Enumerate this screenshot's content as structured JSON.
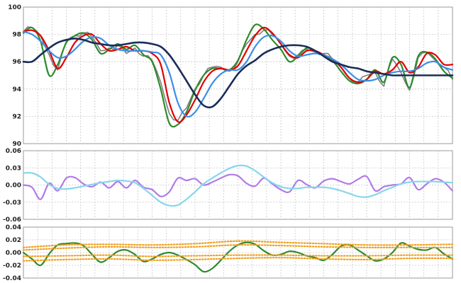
{
  "chart_data": [
    {
      "type": "line",
      "panel": "price",
      "ylim": [
        90,
        100
      ],
      "y_ticks": [
        "90",
        "92",
        "94",
        "96",
        "98",
        "100"
      ],
      "x_range": [
        0,
        100
      ],
      "x_gridlines": 30,
      "grid": true,
      "colors": {
        "price": "#7f7f7f",
        "fast": "#2e8b2e",
        "medium": "#e00000",
        "slow": "#3b8ee8",
        "slowest": "#1a2d57"
      },
      "series": [
        {
          "key": "price",
          "x": [
            0,
            2,
            4,
            6,
            8,
            10,
            12,
            14,
            16,
            18,
            20,
            22,
            24,
            26,
            28,
            30,
            32,
            34,
            36,
            38,
            40,
            42,
            44,
            46,
            48,
            50,
            52,
            54,
            56,
            58,
            60,
            62,
            64,
            66,
            68,
            70,
            72,
            74,
            76,
            78,
            80,
            82,
            84,
            86,
            88,
            90,
            92,
            94,
            96,
            98,
            100
          ],
          "values": [
            98.2,
            98.5,
            97.9,
            96.5,
            95.4,
            97.5,
            97.9,
            98.1,
            97.8,
            96.8,
            97.0,
            97.2,
            96.6,
            97.0,
            96.4,
            96.1,
            94.5,
            92.2,
            91.7,
            92.6,
            94.0,
            95.0,
            95.6,
            95.6,
            95.3,
            96.0,
            97.3,
            98.0,
            98.3,
            98.0,
            97.3,
            96.4,
            96.5,
            96.9,
            96.7,
            96.6,
            96.2,
            95.6,
            94.8,
            94.5,
            95.0,
            95.2,
            94.2,
            96.2,
            95.2,
            93.9,
            96.3,
            96.7,
            96.1,
            95.6,
            94.7
          ]
        },
        {
          "key": "fast",
          "x": [
            0,
            2,
            4,
            6,
            8,
            10,
            12,
            14,
            16,
            18,
            20,
            22,
            24,
            26,
            28,
            30,
            32,
            34,
            36,
            38,
            40,
            42,
            44,
            46,
            48,
            50,
            52,
            54,
            56,
            58,
            60,
            62,
            64,
            66,
            68,
            70,
            72,
            74,
            76,
            78,
            80,
            82,
            84,
            86,
            88,
            90,
            92,
            94,
            96,
            98,
            100
          ],
          "values": [
            98.1,
            98.5,
            97.5,
            95.0,
            95.8,
            97.4,
            97.9,
            98.1,
            97.6,
            96.6,
            96.9,
            97.3,
            96.9,
            97.2,
            96.5,
            96.0,
            94.0,
            91.5,
            91.4,
            92.3,
            93.9,
            95.0,
            95.5,
            95.5,
            95.4,
            96.1,
            97.6,
            98.7,
            98.4,
            97.6,
            96.9,
            96.0,
            96.4,
            97.0,
            96.8,
            96.5,
            96.1,
            95.3,
            94.6,
            94.4,
            94.7,
            95.4,
            94.5,
            96.3,
            95.8,
            94.1,
            96.4,
            96.7,
            96.2,
            95.3,
            94.8
          ]
        },
        {
          "key": "medium",
          "x": [
            0,
            2,
            4,
            6,
            8,
            10,
            12,
            14,
            16,
            18,
            20,
            22,
            24,
            26,
            28,
            30,
            32,
            34,
            36,
            38,
            40,
            42,
            44,
            46,
            48,
            50,
            52,
            54,
            56,
            58,
            60,
            62,
            64,
            66,
            68,
            70,
            72,
            74,
            76,
            78,
            80,
            82,
            84,
            86,
            88,
            90,
            92,
            94,
            96,
            98,
            100
          ],
          "values": [
            98.2,
            98.3,
            97.9,
            96.8,
            95.5,
            96.3,
            97.4,
            97.9,
            98.0,
            97.3,
            96.8,
            96.9,
            97.1,
            96.8,
            96.8,
            96.6,
            95.8,
            93.0,
            91.6,
            92.1,
            93.2,
            94.5,
            95.3,
            95.5,
            95.4,
            95.7,
            96.8,
            97.9,
            98.5,
            98.1,
            97.3,
            96.5,
            96.3,
            96.8,
            96.8,
            96.5,
            96.2,
            95.6,
            94.8,
            94.5,
            94.7,
            95.3,
            95.1,
            95.4,
            96.0,
            95.2,
            95.6,
            96.6,
            96.5,
            95.8,
            95.8
          ]
        },
        {
          "key": "slow",
          "x": [
            0,
            2,
            4,
            6,
            8,
            10,
            12,
            14,
            16,
            18,
            20,
            22,
            24,
            26,
            28,
            30,
            32,
            34,
            36,
            38,
            40,
            42,
            44,
            46,
            48,
            50,
            52,
            54,
            56,
            58,
            60,
            62,
            64,
            66,
            68,
            70,
            72,
            74,
            76,
            78,
            80,
            82,
            84,
            86,
            88,
            90,
            92,
            94,
            96,
            98,
            100
          ],
          "values": [
            98.2,
            98.0,
            97.5,
            96.8,
            96.3,
            96.4,
            96.9,
            97.5,
            97.8,
            97.7,
            97.2,
            96.9,
            96.8,
            96.8,
            96.8,
            96.7,
            96.5,
            95.2,
            93.0,
            92.0,
            92.3,
            93.3,
            94.4,
            95.1,
            95.4,
            95.4,
            96.0,
            97.1,
            97.8,
            97.9,
            97.5,
            96.8,
            96.4,
            96.5,
            96.6,
            96.5,
            96.2,
            95.8,
            95.2,
            94.7,
            94.6,
            94.7,
            95.0,
            95.2,
            95.3,
            95.3,
            95.5,
            95.9,
            96.0,
            95.6,
            95.4
          ]
        },
        {
          "key": "slowest",
          "x": [
            0,
            2,
            4,
            6,
            8,
            10,
            12,
            14,
            16,
            18,
            20,
            22,
            24,
            26,
            28,
            30,
            32,
            34,
            36,
            38,
            40,
            42,
            44,
            46,
            48,
            50,
            52,
            54,
            56,
            58,
            60,
            62,
            64,
            66,
            68,
            70,
            72,
            74,
            76,
            78,
            80,
            82,
            84,
            86,
            88,
            90,
            92,
            94,
            96,
            98,
            100
          ],
          "values": [
            96.0,
            96.0,
            96.5,
            97.0,
            97.4,
            97.6,
            97.7,
            97.6,
            97.4,
            97.3,
            97.2,
            97.2,
            97.3,
            97.4,
            97.4,
            97.3,
            97.1,
            96.5,
            95.6,
            94.6,
            93.6,
            92.8,
            92.7,
            93.3,
            94.2,
            95.1,
            95.7,
            96.1,
            96.6,
            96.9,
            97.1,
            97.2,
            97.2,
            97.1,
            96.8,
            96.4,
            96.0,
            95.8,
            95.6,
            95.5,
            95.3,
            95.2,
            95.1,
            95.0,
            95.0,
            95.0,
            95.0,
            95.0,
            95.0,
            95.0,
            95.0
          ]
        }
      ]
    },
    {
      "type": "line",
      "panel": "oscillator",
      "ylim": [
        -0.06,
        0.06
      ],
      "y_ticks": [
        "-0.06",
        "-0.03",
        "0.00",
        "0.03",
        "0.06"
      ],
      "x_range": [
        0,
        100
      ],
      "grid": true,
      "colors": {
        "osc": "#b07ce6",
        "smooth": "#88d6ec"
      },
      "series": [
        {
          "key": "osc",
          "x": [
            0,
            2,
            4,
            6,
            8,
            10,
            12,
            14,
            16,
            18,
            20,
            22,
            24,
            26,
            28,
            30,
            32,
            34,
            36,
            38,
            40,
            42,
            44,
            46,
            48,
            50,
            52,
            54,
            56,
            58,
            60,
            62,
            64,
            66,
            68,
            70,
            72,
            74,
            76,
            78,
            80,
            82,
            84,
            86,
            88,
            90,
            92,
            94,
            96,
            98,
            100
          ],
          "values": [
            0.0,
            -0.004,
            -0.025,
            0.003,
            -0.01,
            0.012,
            0.013,
            0.002,
            -0.003,
            0.005,
            -0.005,
            0.006,
            -0.005,
            0.008,
            -0.004,
            -0.008,
            -0.02,
            -0.012,
            0.012,
            0.008,
            0.011,
            0.0,
            0.005,
            0.012,
            0.018,
            0.016,
            0.003,
            -0.002,
            0.012,
            0.002,
            -0.008,
            -0.012,
            0.008,
            0.001,
            -0.005,
            0.007,
            0.011,
            0.006,
            0.002,
            0.01,
            0.015,
            -0.01,
            -0.003,
            0.0,
            0.002,
            0.013,
            -0.008,
            0.002,
            0.011,
            0.005,
            -0.01
          ]
        },
        {
          "key": "smooth",
          "x": [
            0,
            2,
            4,
            6,
            8,
            10,
            12,
            14,
            16,
            18,
            20,
            22,
            24,
            26,
            28,
            30,
            32,
            34,
            36,
            38,
            40,
            42,
            44,
            46,
            48,
            50,
            52,
            54,
            56,
            58,
            60,
            62,
            64,
            66,
            68,
            70,
            72,
            74,
            76,
            78,
            80,
            82,
            84,
            86,
            88,
            90,
            92,
            94,
            96,
            98,
            100
          ],
          "values": [
            0.021,
            0.021,
            0.014,
            0.001,
            -0.006,
            -0.007,
            -0.005,
            -0.002,
            0.001,
            0.004,
            0.006,
            0.008,
            0.007,
            0.004,
            -0.006,
            -0.018,
            -0.03,
            -0.036,
            -0.035,
            -0.025,
            -0.012,
            0.002,
            0.012,
            0.021,
            0.029,
            0.034,
            0.033,
            0.025,
            0.014,
            0.004,
            -0.003,
            -0.006,
            -0.006,
            -0.004,
            -0.004,
            -0.004,
            -0.006,
            -0.01,
            -0.015,
            -0.02,
            -0.021,
            -0.017,
            -0.01,
            -0.004,
            0.002,
            0.005,
            0.006,
            0.006,
            0.006,
            0.005,
            0.004
          ]
        }
      ]
    },
    {
      "type": "line",
      "panel": "histogram-bands",
      "ylim": [
        -0.04,
        0.04
      ],
      "y_ticks": [
        "-0.04",
        "-0.02",
        "0.00",
        "0.02",
        "0.04"
      ],
      "x_range": [
        0,
        100
      ],
      "grid": true,
      "colors": {
        "signal": "#2e8b2e",
        "bands": "#f0a020"
      },
      "series": [
        {
          "key": "signal",
          "x": [
            0,
            2,
            4,
            6,
            8,
            10,
            12,
            14,
            16,
            18,
            20,
            22,
            24,
            26,
            28,
            30,
            32,
            34,
            36,
            38,
            40,
            42,
            44,
            46,
            48,
            50,
            52,
            54,
            56,
            58,
            60,
            62,
            64,
            66,
            68,
            70,
            72,
            74,
            76,
            78,
            80,
            82,
            84,
            86,
            88,
            90,
            92,
            94,
            96,
            98,
            100
          ],
          "values": [
            0.0,
            -0.01,
            -0.02,
            -0.002,
            0.012,
            0.014,
            0.015,
            0.011,
            -0.003,
            -0.015,
            -0.008,
            0.002,
            0.004,
            -0.003,
            -0.014,
            -0.01,
            -0.003,
            0.0,
            -0.004,
            -0.011,
            -0.019,
            -0.03,
            -0.025,
            -0.012,
            0.002,
            0.012,
            0.016,
            0.013,
            0.003,
            -0.004,
            -0.003,
            0.002,
            0.0,
            -0.005,
            -0.008,
            -0.012,
            -0.003,
            0.01,
            0.012,
            0.004,
            -0.005,
            -0.013,
            -0.01,
            0.0,
            0.015,
            0.01,
            0.005,
            0.004,
            0.008,
            -0.002,
            -0.01
          ]
        },
        {
          "key": "band-outer-upper",
          "x": [
            0,
            10,
            20,
            30,
            40,
            50,
            60,
            70,
            80,
            90,
            100
          ],
          "values": [
            0.008,
            0.012,
            0.013,
            0.012,
            0.014,
            0.018,
            0.016,
            0.014,
            0.012,
            0.012,
            0.013
          ]
        },
        {
          "key": "band-inner-upper",
          "x": [
            0,
            10,
            20,
            30,
            40,
            50,
            60,
            70,
            80,
            90,
            100
          ],
          "values": [
            0.004,
            0.007,
            0.009,
            0.008,
            0.009,
            0.012,
            0.011,
            0.009,
            0.008,
            0.008,
            0.008
          ]
        },
        {
          "key": "band-inner-lower",
          "x": [
            0,
            10,
            20,
            30,
            40,
            50,
            60,
            70,
            80,
            90,
            100
          ],
          "values": [
            -0.006,
            -0.005,
            -0.004,
            -0.006,
            -0.005,
            -0.004,
            -0.004,
            -0.005,
            -0.005,
            -0.004,
            -0.004
          ]
        },
        {
          "key": "band-outer-lower",
          "x": [
            0,
            10,
            20,
            30,
            40,
            50,
            60,
            70,
            80,
            90,
            100
          ],
          "values": [
            -0.013,
            -0.011,
            -0.01,
            -0.012,
            -0.011,
            -0.009,
            -0.008,
            -0.01,
            -0.011,
            -0.009,
            -0.009
          ]
        }
      ]
    }
  ]
}
